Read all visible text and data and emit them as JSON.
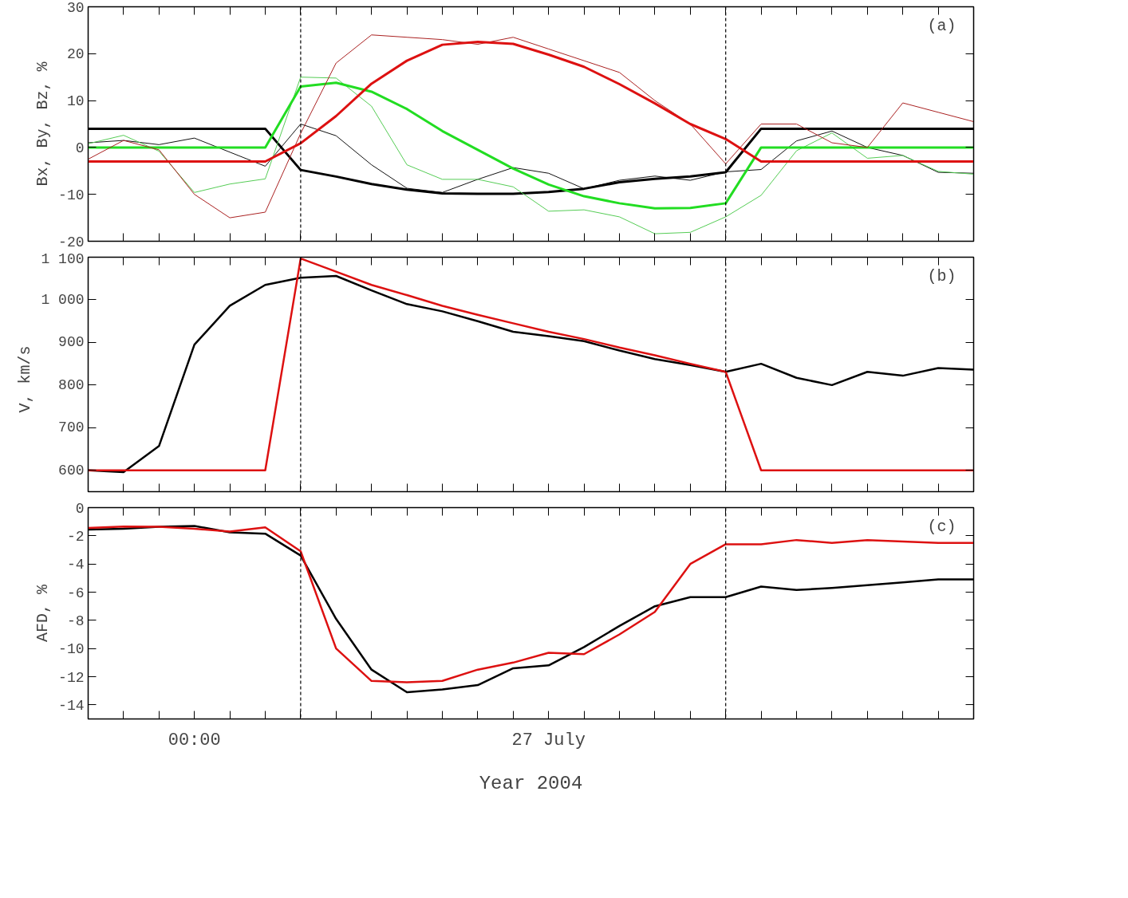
{
  "chart_data": [
    {
      "type": "line",
      "ylabel": "Bx, By, Bz, %",
      "xlim": [
        "2004-07-26T21:00",
        "2004-07-27T22:00"
      ],
      "ylim": [
        -20,
        30
      ],
      "yticks": [
        -20,
        -10,
        0,
        10,
        20,
        30
      ],
      "xticks": [
        {
          "value": "2004-07-26T21:00",
          "label": null
        },
        {
          "value": "2004-07-26T22:00",
          "label": null
        },
        {
          "value": "2004-07-26T23:00",
          "label": null
        },
        {
          "value": "2004-07-27T00:00",
          "label": null
        },
        {
          "value": "2004-07-27T01:00",
          "label": null
        },
        {
          "value": "2004-07-27T02:00",
          "label": null
        },
        {
          "value": "2004-07-27T03:00",
          "label": null
        },
        {
          "value": "2004-07-27T04:00",
          "label": null
        },
        {
          "value": "2004-07-27T05:00",
          "label": null
        },
        {
          "value": "2004-07-27T06:00",
          "label": null
        },
        {
          "value": "2004-07-27T07:00",
          "label": null
        },
        {
          "value": "2004-07-27T08:00",
          "label": null
        },
        {
          "value": "2004-07-27T09:00",
          "label": null
        },
        {
          "value": "2004-07-27T10:00",
          "label": null
        },
        {
          "value": "2004-07-27T11:00",
          "label": null
        },
        {
          "value": "2004-07-27T12:00",
          "label": null
        },
        {
          "value": "2004-07-27T13:00",
          "label": null
        },
        {
          "value": "2004-07-27T14:00",
          "label": null
        },
        {
          "value": "2004-07-27T15:00",
          "label": null
        },
        {
          "value": "2004-07-27T16:00",
          "label": null
        },
        {
          "value": "2004-07-27T17:00",
          "label": null
        },
        {
          "value": "2004-07-27T18:00",
          "label": null
        },
        {
          "value": "2004-07-27T19:00",
          "label": null
        },
        {
          "value": "2004-07-27T20:00",
          "label": null
        },
        {
          "value": "2004-07-27T21:00",
          "label": null
        },
        {
          "value": "2004-07-27T22:00",
          "label": null
        }
      ],
      "tick_labels": "y",
      "grid": false,
      "line_style": "solid",
      "x": [
        "2004-07-26T21:00",
        "2004-07-26T22:00",
        "2004-07-26T23:00",
        "2004-07-27T00:00",
        "2004-07-27T01:00",
        "2004-07-27T02:00",
        "2004-07-27T03:00",
        "2004-07-27T04:00",
        "2004-07-27T05:00",
        "2004-07-27T06:00",
        "2004-07-27T07:00",
        "2004-07-27T08:00",
        "2004-07-27T09:00",
        "2004-07-27T10:00",
        "2004-07-27T11:00",
        "2004-07-27T12:00",
        "2004-07-27T13:00",
        "2004-07-27T14:00",
        "2004-07-27T15:00",
        "2004-07-27T16:00",
        "2004-07-27T17:00",
        "2004-07-27T18:00",
        "2004-07-27T19:00",
        "2004-07-27T20:00",
        "2004-07-27T21:00",
        "2004-07-27T22:00"
      ],
      "series": [
        {
          "color": "#111111",
          "values": [
            1,
            1.5,
            0.6,
            2,
            -1,
            -4,
            5,
            2.5,
            -3.7,
            -8.7,
            -9.6,
            -6.8,
            -4.3,
            -5.5,
            -8.8,
            -7,
            -6.1,
            -7,
            -5.2,
            -4.7,
            1.4,
            3.5,
            0,
            -1.7,
            -5.3,
            -5.5
          ]
        },
        {
          "color": "#000000",
          "values": [
            4,
            4,
            4,
            4,
            4,
            4,
            -4.8,
            -6.2,
            -7.8,
            -9,
            -9.8,
            -9.9,
            -9.9,
            -9.5,
            -8.8,
            -7.4,
            -6.7,
            -6.2,
            -5.3,
            4,
            4,
            4,
            4,
            4,
            4,
            4
          ]
        },
        {
          "color": "#55cc55",
          "values": [
            0.8,
            2.6,
            -0.8,
            -9.6,
            -7.8,
            -6.7,
            15,
            14.8,
            8.8,
            -3.7,
            -6.8,
            -6.8,
            -8.4,
            -13.6,
            -13.3,
            -14.8,
            -18.4,
            -18.1,
            -14.8,
            -10.2,
            -0.7,
            3.1,
            -2.3,
            -1.7,
            -5.1,
            -5.7
          ]
        },
        {
          "color": "#22dd22",
          "values": [
            0,
            0,
            0,
            0,
            0,
            0,
            13,
            13.8,
            11.9,
            8.2,
            3.5,
            -0.5,
            -4.5,
            -7.9,
            -10.4,
            -11.9,
            -13,
            -12.9,
            -11.9,
            0,
            0,
            0,
            0,
            0,
            0,
            0
          ]
        },
        {
          "color": "#aa2222",
          "values": [
            -2.5,
            1.5,
            -0.5,
            -10,
            -15,
            -13.8,
            3,
            18,
            24,
            23.5,
            23,
            22,
            23.5,
            21,
            18.5,
            16,
            10,
            5,
            -3.5,
            5,
            5,
            1,
            0,
            9.5,
            7.5,
            5.5
          ]
        },
        {
          "color": "#dd1111",
          "values": [
            -3,
            -3,
            -3,
            -3,
            -3,
            -3,
            0.9,
            6.7,
            13.6,
            18.5,
            21.9,
            22.5,
            22.1,
            19.8,
            17.2,
            13.5,
            9.4,
            5,
            1.8,
            -3,
            -3,
            -3,
            -3,
            -3,
            -3,
            -3
          ]
        }
      ],
      "ref_lines": [
        {
          "axis": "x",
          "value": "2004-07-27T03:00",
          "color": "#000000",
          "line_style": "dashed"
        },
        {
          "axis": "x",
          "value": "2004-07-27T15:00",
          "color": "#000000",
          "line_style": "dashed"
        }
      ],
      "annotations": [
        "(a)"
      ]
    },
    {
      "type": "line",
      "ylabel": "V,  km/s",
      "xlim": [
        "2004-07-26T21:00",
        "2004-07-27T22:00"
      ],
      "ylim": [
        550,
        1100
      ],
      "yticks": [
        {
          "value": 600,
          "label": "600"
        },
        {
          "value": 700,
          "label": "700"
        },
        {
          "value": 800,
          "label": "800"
        },
        {
          "value": 900,
          "label": "900"
        },
        {
          "value": 1000,
          "label": "1 000"
        },
        {
          "value": 1100,
          "label": "1 100"
        }
      ],
      "xticks": [
        {
          "value": "2004-07-26T21:00",
          "label": null
        },
        {
          "value": "2004-07-26T22:00",
          "label": null
        },
        {
          "value": "2004-07-26T23:00",
          "label": null
        },
        {
          "value": "2004-07-27T00:00",
          "label": null
        },
        {
          "value": "2004-07-27T01:00",
          "label": null
        },
        {
          "value": "2004-07-27T02:00",
          "label": null
        },
        {
          "value": "2004-07-27T03:00",
          "label": null
        },
        {
          "value": "2004-07-27T04:00",
          "label": null
        },
        {
          "value": "2004-07-27T05:00",
          "label": null
        },
        {
          "value": "2004-07-27T06:00",
          "label": null
        },
        {
          "value": "2004-07-27T07:00",
          "label": null
        },
        {
          "value": "2004-07-27T08:00",
          "label": null
        },
        {
          "value": "2004-07-27T09:00",
          "label": null
        },
        {
          "value": "2004-07-27T10:00",
          "label": null
        },
        {
          "value": "2004-07-27T11:00",
          "label": null
        },
        {
          "value": "2004-07-27T12:00",
          "label": null
        },
        {
          "value": "2004-07-27T13:00",
          "label": null
        },
        {
          "value": "2004-07-27T14:00",
          "label": null
        },
        {
          "value": "2004-07-27T15:00",
          "label": null
        },
        {
          "value": "2004-07-27T16:00",
          "label": null
        },
        {
          "value": "2004-07-27T17:00",
          "label": null
        },
        {
          "value": "2004-07-27T18:00",
          "label": null
        },
        {
          "value": "2004-07-27T19:00",
          "label": null
        },
        {
          "value": "2004-07-27T20:00",
          "label": null
        },
        {
          "value": "2004-07-27T21:00",
          "label": null
        },
        {
          "value": "2004-07-27T22:00",
          "label": null
        }
      ],
      "tick_labels": "y",
      "grid": false,
      "line_style": "solid",
      "x": [
        "2004-07-26T21:00",
        "2004-07-26T22:00",
        "2004-07-26T23:00",
        "2004-07-27T00:00",
        "2004-07-27T01:00",
        "2004-07-27T02:00",
        "2004-07-27T03:00",
        "2004-07-27T04:00",
        "2004-07-27T05:00",
        "2004-07-27T06:00",
        "2004-07-27T07:00",
        "2004-07-27T08:00",
        "2004-07-27T09:00",
        "2004-07-27T10:00",
        "2004-07-27T11:00",
        "2004-07-27T12:00",
        "2004-07-27T13:00",
        "2004-07-27T14:00",
        "2004-07-27T15:00",
        "2004-07-27T16:00",
        "2004-07-27T17:00",
        "2004-07-27T18:00",
        "2004-07-27T19:00",
        "2004-07-27T20:00",
        "2004-07-27T21:00",
        "2004-07-27T22:00"
      ],
      "series": [
        {
          "color": "#000000",
          "values": [
            600,
            596,
            657,
            895,
            986,
            1035,
            1052,
            1056,
            1022,
            990,
            973,
            950,
            925,
            915,
            903,
            881,
            861,
            847,
            831,
            850,
            817,
            800,
            831,
            822,
            840,
            836
          ]
        },
        {
          "color": "#dd1111",
          "values": [
            600,
            600,
            600,
            600,
            600,
            600,
            1097,
            1066,
            1035,
            1011,
            986,
            965,
            945,
            925,
            908,
            888,
            870,
            850,
            831,
            600,
            600,
            600,
            600,
            600,
            600,
            600
          ]
        }
      ],
      "ref_lines": [
        {
          "axis": "x",
          "value": "2004-07-27T03:00",
          "color": "#000000",
          "line_style": "dashed"
        },
        {
          "axis": "x",
          "value": "2004-07-27T15:00",
          "color": "#000000",
          "line_style": "dashed"
        }
      ],
      "annotations": [
        "(b)"
      ]
    },
    {
      "type": "line",
      "ylabel": "AFD, %",
      "xlabel": "Year 2004",
      "xlim": [
        "2004-07-26T21:00",
        "2004-07-27T22:00"
      ],
      "ylim": [
        -15,
        0
      ],
      "yticks": [
        -14,
        -12,
        -10,
        -8,
        -6,
        -4,
        -2,
        0
      ],
      "xticks": [
        {
          "value": "2004-07-26T21:00",
          "label": null
        },
        {
          "value": "2004-07-26T22:00",
          "label": null
        },
        {
          "value": "2004-07-26T23:00",
          "label": null
        },
        {
          "value": "2004-07-27T00:00",
          "label": "00:00"
        },
        {
          "value": "2004-07-27T01:00",
          "label": null
        },
        {
          "value": "2004-07-27T02:00",
          "label": null
        },
        {
          "value": "2004-07-27T03:00",
          "label": null
        },
        {
          "value": "2004-07-27T04:00",
          "label": null
        },
        {
          "value": "2004-07-27T05:00",
          "label": null
        },
        {
          "value": "2004-07-27T06:00",
          "label": null
        },
        {
          "value": "2004-07-27T07:00",
          "label": null
        },
        {
          "value": "2004-07-27T08:00",
          "label": null
        },
        {
          "value": "2004-07-27T09:00",
          "label": null
        },
        {
          "value": "2004-07-27T10:00",
          "label": "27 July"
        },
        {
          "value": "2004-07-27T11:00",
          "label": null
        },
        {
          "value": "2004-07-27T12:00",
          "label": null
        },
        {
          "value": "2004-07-27T13:00",
          "label": null
        },
        {
          "value": "2004-07-27T14:00",
          "label": null
        },
        {
          "value": "2004-07-27T15:00",
          "label": null
        },
        {
          "value": "2004-07-27T16:00",
          "label": null
        },
        {
          "value": "2004-07-27T17:00",
          "label": null
        },
        {
          "value": "2004-07-27T18:00",
          "label": null
        },
        {
          "value": "2004-07-27T19:00",
          "label": null
        },
        {
          "value": "2004-07-27T20:00",
          "label": null
        },
        {
          "value": "2004-07-27T21:00",
          "label": null
        },
        {
          "value": "2004-07-27T22:00",
          "label": null
        }
      ],
      "grid": false,
      "line_style": "solid",
      "x": [
        "2004-07-26T21:00",
        "2004-07-26T22:00",
        "2004-07-26T23:00",
        "2004-07-27T00:00",
        "2004-07-27T01:00",
        "2004-07-27T02:00",
        "2004-07-27T03:00",
        "2004-07-27T04:00",
        "2004-07-27T05:00",
        "2004-07-27T06:00",
        "2004-07-27T07:00",
        "2004-07-27T08:00",
        "2004-07-27T09:00",
        "2004-07-27T10:00",
        "2004-07-27T11:00",
        "2004-07-27T12:00",
        "2004-07-27T13:00",
        "2004-07-27T14:00",
        "2004-07-27T15:00",
        "2004-07-27T16:00",
        "2004-07-27T17:00",
        "2004-07-27T18:00",
        "2004-07-27T19:00",
        "2004-07-27T20:00",
        "2004-07-27T21:00",
        "2004-07-27T22:00"
      ],
      "series": [
        {
          "color": "#000000",
          "values": [
            -1.56,
            -1.5,
            -1.36,
            -1.3,
            -1.75,
            -1.85,
            -3.4,
            -7.9,
            -11.5,
            -13.1,
            -12.9,
            -12.6,
            -11.4,
            -11.2,
            -9.9,
            -8.4,
            -7,
            -6.35,
            -6.35,
            -5.6,
            -5.85,
            -5.7,
            -5.5,
            -5.3,
            -5.1,
            -5.1
          ]
        },
        {
          "color": "#dd1111",
          "values": [
            -1.45,
            -1.35,
            -1.36,
            -1.5,
            -1.7,
            -1.4,
            -3.1,
            -10,
            -12.3,
            -12.4,
            -12.3,
            -11.5,
            -11,
            -10.3,
            -10.4,
            -9,
            -7.4,
            -4,
            -2.6,
            -2.6,
            -2.3,
            -2.5,
            -2.3,
            -2.4,
            -2.5,
            -2.5
          ]
        }
      ],
      "ref_lines": [
        {
          "axis": "x",
          "value": "2004-07-27T03:00",
          "color": "#000000",
          "line_style": "dashed"
        },
        {
          "axis": "x",
          "value": "2004-07-27T15:00",
          "color": "#000000",
          "line_style": "dashed"
        }
      ],
      "annotations": [
        "(c)"
      ]
    }
  ]
}
